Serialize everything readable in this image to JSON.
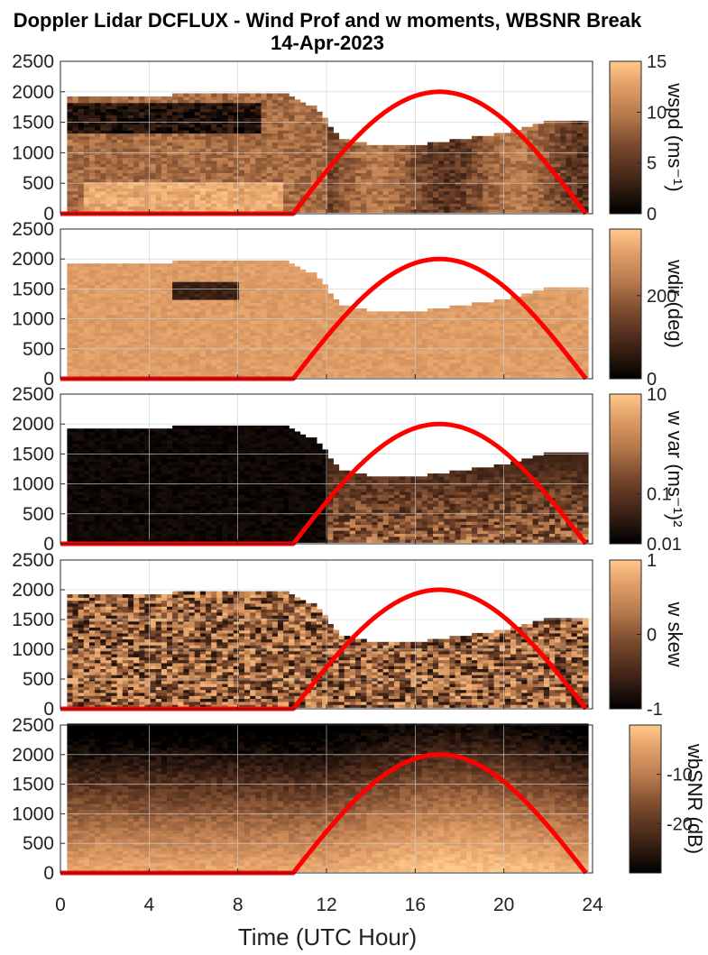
{
  "title": {
    "line1": "Doppler Lidar DCFLUX - Wind Prof and w moments, WBSNR Break",
    "line2": "14-Apr-2023"
  },
  "xlabel": "Time (UTC Hour)",
  "colors": {
    "colormap": [
      "#000000",
      "#3a2014",
      "#7a4a2e",
      "#b77a4d",
      "#e3a16a",
      "#ffc98a"
    ],
    "sun_curve": "#ff0000",
    "background": "#ffffff"
  },
  "chart_data": [
    {
      "type": "heatmap",
      "variable": "wspd",
      "colorbar_label": "wspd (ms⁻¹)",
      "xlim": [
        0,
        24
      ],
      "ylim": [
        0,
        2500
      ],
      "xticks": [
        0,
        4,
        8,
        12,
        16,
        20,
        24
      ],
      "yticks": [
        0,
        500,
        1000,
        1500,
        2000,
        2500
      ],
      "clim": [
        0,
        15
      ],
      "cbticks": [
        0,
        5,
        10,
        15
      ],
      "data_top_m": [
        [
          0.3,
          1880
        ],
        [
          2,
          1900
        ],
        [
          4,
          1900
        ],
        [
          6,
          1950
        ],
        [
          8,
          1950
        ],
        [
          10,
          1950
        ],
        [
          11.5,
          1700
        ],
        [
          12.5,
          1200
        ],
        [
          14,
          1100
        ],
        [
          16,
          1100
        ],
        [
          18,
          1200
        ],
        [
          20,
          1300
        ],
        [
          22,
          1500
        ],
        [
          23.5,
          1500
        ]
      ],
      "sun_elevation_curve": {
        "rise_hour": 10.5,
        "peak_hour": 17.1,
        "peak_value": 2000,
        "set_hour": 23.7
      }
    },
    {
      "type": "heatmap",
      "variable": "wdir",
      "colorbar_label": "wdir (deg)",
      "xlim": [
        0,
        24
      ],
      "ylim": [
        0,
        2500
      ],
      "xticks": [
        0,
        4,
        8,
        12,
        16,
        20,
        24
      ],
      "yticks": [
        0,
        500,
        1000,
        1500,
        2000,
        2500
      ],
      "clim": [
        0,
        360
      ],
      "cbticks": [
        0,
        200
      ],
      "data_top_m": [
        [
          0.3,
          1880
        ],
        [
          2,
          1900
        ],
        [
          4,
          1900
        ],
        [
          6,
          1950
        ],
        [
          8,
          1950
        ],
        [
          10,
          1950
        ],
        [
          11.5,
          1700
        ],
        [
          12.5,
          1200
        ],
        [
          14,
          1100
        ],
        [
          16,
          1100
        ],
        [
          18,
          1200
        ],
        [
          20,
          1300
        ],
        [
          22,
          1500
        ],
        [
          23.5,
          1500
        ]
      ],
      "sun_elevation_curve": {
        "rise_hour": 10.5,
        "peak_hour": 17.1,
        "peak_value": 2000,
        "set_hour": 23.7
      }
    },
    {
      "type": "heatmap",
      "variable": "w var",
      "colorbar_label": "w var (ms⁻¹)²",
      "xlim": [
        0,
        24
      ],
      "ylim": [
        0,
        2500
      ],
      "xticks": [
        0,
        4,
        8,
        12,
        16,
        20,
        24
      ],
      "yticks": [
        0,
        500,
        1000,
        1500,
        2000,
        2500
      ],
      "scale": "log",
      "clim": [
        0.01,
        10
      ],
      "cbticks": [
        "0.01",
        "0.1",
        "10"
      ],
      "data_top_m": [
        [
          0.3,
          1880
        ],
        [
          2,
          1900
        ],
        [
          4,
          1900
        ],
        [
          6,
          1950
        ],
        [
          8,
          1950
        ],
        [
          10,
          1950
        ],
        [
          11.5,
          1700
        ],
        [
          12.5,
          1200
        ],
        [
          14,
          1100
        ],
        [
          16,
          1100
        ],
        [
          18,
          1200
        ],
        [
          20,
          1300
        ],
        [
          22,
          1500
        ],
        [
          23.5,
          1500
        ]
      ],
      "sun_elevation_curve": {
        "rise_hour": 10.5,
        "peak_hour": 17.1,
        "peak_value": 2000,
        "set_hour": 23.7
      }
    },
    {
      "type": "heatmap",
      "variable": "w skew",
      "colorbar_label": "w skew",
      "xlim": [
        0,
        24
      ],
      "ylim": [
        0,
        2500
      ],
      "xticks": [
        0,
        4,
        8,
        12,
        16,
        20,
        24
      ],
      "yticks": [
        0,
        500,
        1000,
        1500,
        2000,
        2500
      ],
      "clim": [
        -1,
        1
      ],
      "cbticks": [
        -1,
        0,
        1
      ],
      "data_top_m": [
        [
          0.3,
          1880
        ],
        [
          2,
          1900
        ],
        [
          4,
          1900
        ],
        [
          6,
          1950
        ],
        [
          8,
          1950
        ],
        [
          10,
          1950
        ],
        [
          11.5,
          1700
        ],
        [
          12.5,
          1200
        ],
        [
          14,
          1100
        ],
        [
          16,
          1100
        ],
        [
          18,
          1200
        ],
        [
          20,
          1300
        ],
        [
          22,
          1500
        ],
        [
          23.5,
          1500
        ]
      ],
      "sun_elevation_curve": {
        "rise_hour": 10.5,
        "peak_hour": 17.1,
        "peak_value": 2000,
        "set_hour": 23.7
      }
    },
    {
      "type": "heatmap",
      "variable": "wbSNR",
      "colorbar_label": "wbSNR (dB)",
      "xlim": [
        0,
        24
      ],
      "ylim": [
        0,
        2500
      ],
      "xticks": [
        0,
        4,
        8,
        12,
        16,
        20,
        24
      ],
      "yticks": [
        0,
        500,
        1000,
        1500,
        2000,
        2500
      ],
      "clim": [
        -30,
        0
      ],
      "cbticks": [
        -20,
        -10
      ],
      "data_top_m": [
        [
          0.3,
          2500
        ],
        [
          23.8,
          2500
        ]
      ],
      "sun_elevation_curve": {
        "rise_hour": 10.5,
        "peak_hour": 17.1,
        "peak_value": 2000,
        "set_hour": 23.7
      }
    }
  ]
}
